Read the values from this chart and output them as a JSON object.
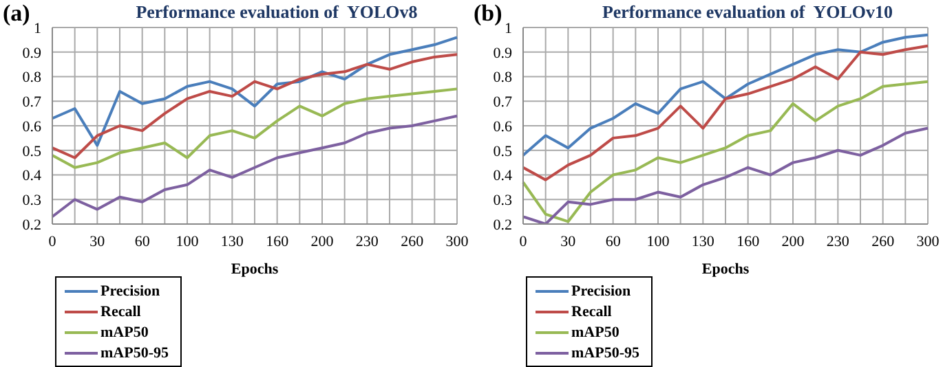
{
  "chart_data": [
    {
      "type": "line",
      "title": "Performance evaluation of  YOLOv8",
      "annotations": [
        "(a)"
      ],
      "xlabel": "Epochs",
      "categories": [
        "0",
        null,
        "30",
        null,
        "60",
        null,
        "100",
        null,
        "130",
        null,
        "160",
        null,
        "200",
        null,
        "230",
        null,
        "260",
        null,
        "300"
      ],
      "ylim": [
        0.2,
        1
      ],
      "yticks": [
        0.2,
        0.3,
        0.4,
        0.5,
        0.6,
        0.7,
        0.8,
        0.9,
        1
      ],
      "grid": true,
      "legend": "bottom left",
      "marker": "none",
      "series": [
        {
          "name": "Precision",
          "color": "#4a7ebb",
          "values": [
            0.63,
            0.67,
            0.52,
            0.74,
            0.69,
            0.71,
            0.76,
            0.78,
            0.75,
            0.68,
            0.77,
            0.78,
            0.82,
            0.79,
            0.85,
            0.89,
            0.91,
            0.93,
            0.96
          ]
        },
        {
          "name": "Recall",
          "color": "#be4b48",
          "values": [
            0.51,
            0.47,
            0.56,
            0.6,
            0.58,
            0.65,
            0.71,
            0.74,
            0.72,
            0.78,
            0.75,
            0.79,
            0.81,
            0.82,
            0.85,
            0.83,
            0.86,
            0.88,
            0.89
          ]
        },
        {
          "name": "mAP50",
          "color": "#98b954",
          "values": [
            0.48,
            0.43,
            0.45,
            0.49,
            0.51,
            0.53,
            0.47,
            0.56,
            0.58,
            0.55,
            0.62,
            0.68,
            0.64,
            0.69,
            0.71,
            0.72,
            0.73,
            0.74,
            0.75
          ]
        },
        {
          "name": "mAP50-95",
          "color": "#7d60a0",
          "values": [
            0.23,
            0.3,
            0.26,
            0.31,
            0.29,
            0.34,
            0.36,
            0.42,
            0.39,
            0.43,
            0.47,
            0.49,
            0.51,
            0.53,
            0.57,
            0.59,
            0.6,
            0.62,
            0.64
          ]
        }
      ]
    },
    {
      "type": "line",
      "title": "Performance evaluation of  YOLOv10",
      "annotations": [
        "(b)"
      ],
      "xlabel": "Epochs",
      "categories": [
        "0",
        null,
        "30",
        null,
        "60",
        null,
        "100",
        null,
        "130",
        null,
        "160",
        null,
        "200",
        null,
        "230",
        null,
        "260",
        null,
        "300"
      ],
      "ylim": [
        0.2,
        1
      ],
      "yticks": [
        0.2,
        0.3,
        0.4,
        0.5,
        0.6,
        0.7,
        0.8,
        0.9,
        1
      ],
      "grid": true,
      "legend": "bottom left",
      "marker": "none",
      "series": [
        {
          "name": "Precision",
          "color": "#4a7ebb",
          "values": [
            0.48,
            0.56,
            0.51,
            0.59,
            0.63,
            0.69,
            0.65,
            0.75,
            0.78,
            0.71,
            0.77,
            0.81,
            0.85,
            0.89,
            0.91,
            0.9,
            0.94,
            0.96,
            0.97
          ]
        },
        {
          "name": "Recall",
          "color": "#be4b48",
          "values": [
            0.43,
            0.38,
            0.44,
            0.48,
            0.55,
            0.56,
            0.59,
            0.68,
            0.59,
            0.71,
            0.73,
            0.76,
            0.79,
            0.84,
            0.79,
            0.9,
            0.89,
            0.91,
            0.925
          ]
        },
        {
          "name": "mAP50",
          "color": "#98b954",
          "values": [
            0.37,
            0.24,
            0.21,
            0.33,
            0.4,
            0.42,
            0.47,
            0.45,
            0.48,
            0.51,
            0.56,
            0.58,
            0.69,
            0.62,
            0.68,
            0.71,
            0.76,
            0.77,
            0.78
          ]
        },
        {
          "name": "mAP50-95",
          "color": "#7d60a0",
          "values": [
            0.23,
            0.2,
            0.29,
            0.28,
            0.3,
            0.3,
            0.33,
            0.31,
            0.36,
            0.39,
            0.43,
            0.4,
            0.45,
            0.47,
            0.5,
            0.48,
            0.52,
            0.57,
            0.59
          ]
        }
      ]
    }
  ]
}
